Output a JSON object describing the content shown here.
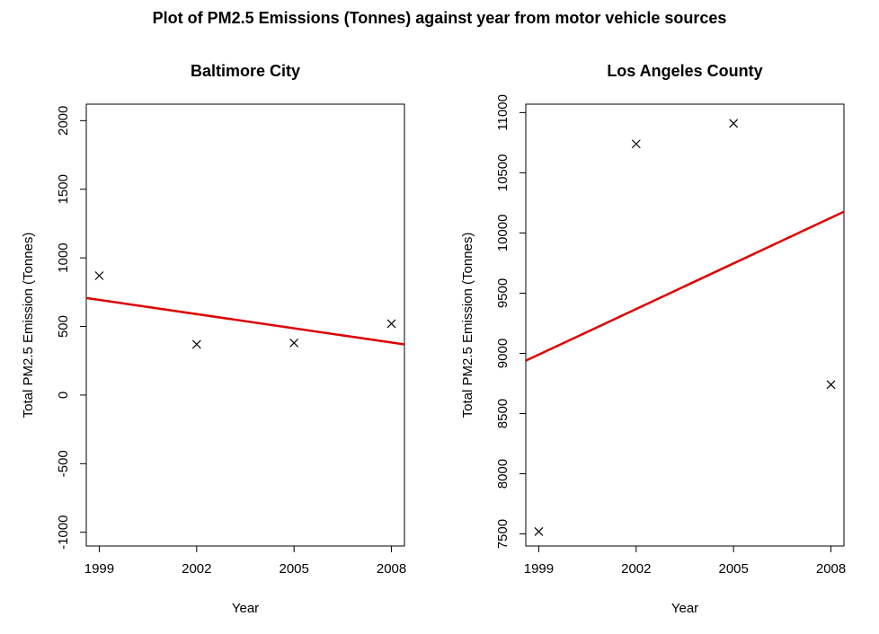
{
  "main_title": "Plot of PM2.5 Emissions (Tonnes) against year from motor vehicle sources",
  "colors": {
    "fit_line": "#dd0000",
    "points": "#000000",
    "background": "#ffffff"
  },
  "chart_data": [
    {
      "type": "scatter",
      "title": "Baltimore City",
      "xlabel": "Year",
      "ylabel": "Total PM2.5 Emission (Tonnes)",
      "x": [
        1999,
        2002,
        2005,
        2008
      ],
      "y": [
        870,
        370,
        380,
        520
      ],
      "marker": "x",
      "xlim": [
        1998.6,
        2008.4
      ],
      "ylim": [
        -1100,
        2120
      ],
      "xticks": [
        1999,
        2002,
        2005,
        2008
      ],
      "xtick_labels": [
        "1999",
        "2002",
        "2005",
        "2008"
      ],
      "yticks": [
        -1000,
        -500,
        0,
        500,
        1000,
        1500,
        2000
      ],
      "ytick_labels": [
        "-1000",
        "-500",
        "0",
        "500",
        "1000",
        "1500",
        "2000"
      ],
      "fit_line": {
        "slope": -34.5,
        "intercept": 69659
      },
      "grid": false
    },
    {
      "type": "scatter",
      "title": "Los Angeles County",
      "xlabel": "Year",
      "ylabel": "Total PM2.5 Emission (Tonnes)",
      "x": [
        1999,
        2002,
        2005,
        2008
      ],
      "y": [
        7520,
        10740,
        10910,
        8740
      ],
      "marker": "x",
      "xlim": [
        1998.6,
        2008.4
      ],
      "ylim": [
        7400,
        11070
      ],
      "xticks": [
        1999,
        2002,
        2005,
        2008
      ],
      "xtick_labels": [
        "1999",
        "2002",
        "2005",
        "2008"
      ],
      "yticks": [
        7500,
        8000,
        8500,
        9000,
        9500,
        10000,
        10500,
        11000
      ],
      "ytick_labels": [
        "7500",
        "8000",
        "8500",
        "9000",
        "9500",
        "10000",
        "10500",
        "11000"
      ],
      "fit_line": {
        "slope": 126.3,
        "intercept": -243484
      },
      "grid": false
    }
  ]
}
